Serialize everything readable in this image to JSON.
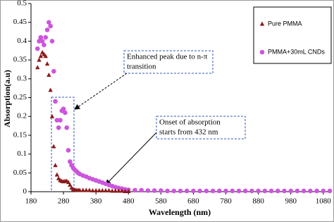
{
  "chart_data": {
    "type": "scatter",
    "xlabel": "Wavelength (nm)",
    "ylabel": "Absorption(a.u)",
    "x": [
      200,
      205,
      210,
      215,
      220,
      225,
      230,
      235,
      240,
      245,
      250,
      255,
      260,
      265,
      270,
      275,
      280,
      285,
      290,
      295,
      300,
      305,
      310,
      315,
      320,
      325,
      330,
      340,
      350,
      360,
      370,
      380,
      390,
      400,
      410,
      420,
      430,
      440,
      450,
      460,
      470,
      480,
      500,
      520,
      540,
      560,
      580,
      600,
      620,
      640,
      660,
      680,
      700,
      720,
      740,
      760,
      780,
      800,
      820,
      840,
      860,
      880,
      900,
      920,
      940,
      960,
      980,
      1000,
      1020,
      1040,
      1060,
      1080,
      1100
    ],
    "series": [
      {
        "name": "PMMA+30mL CNDs",
        "color": "#cc55dd",
        "marker": "circle",
        "values": [
          0.38,
          0.4,
          0.41,
          0.4,
          0.39,
          0.41,
          0.43,
          0.45,
          0.44,
          0.4,
          0.32,
          0.24,
          0.19,
          0.17,
          0.19,
          0.215,
          0.22,
          0.21,
          0.17,
          0.11,
          0.08,
          0.07,
          0.063,
          0.058,
          0.054,
          0.05,
          0.047,
          0.043,
          0.04,
          0.036,
          0.033,
          0.03,
          0.027,
          0.024,
          0.021,
          0.018,
          0.015,
          0.012,
          0.01,
          0.008,
          0.006,
          0.005,
          0.004,
          0.004,
          0.003,
          0.003,
          0.003,
          0.002,
          0.002,
          0.002,
          0.002,
          0.002,
          0.002,
          0.002,
          0.002,
          0.002,
          0.002,
          0.002,
          0.002,
          0.002,
          0.002,
          0.002,
          0.002,
          0.002,
          0.002,
          0.002,
          0.002,
          0.002,
          0.002,
          0.002,
          0.002,
          0.002,
          0.002
        ]
      },
      {
        "name": "Pure PMMA",
        "color": "#8b1a1a",
        "marker": "triangle",
        "values": [
          0.33,
          0.35,
          0.36,
          0.37,
          0.365,
          0.36,
          0.34,
          0.31,
          0.27,
          0.2,
          0.12,
          0.07,
          0.045,
          0.035,
          0.03,
          0.028,
          0.027,
          0.028,
          0.028,
          0.025,
          0.018,
          0.01,
          0.006,
          0.005,
          0.004,
          0.004,
          0.004,
          0.004,
          0.004,
          0.004,
          0.003,
          0.003,
          0.003,
          0.003,
          0.003,
          0.003,
          0.002,
          0.002,
          0.002,
          0.002,
          0.001,
          0.001,
          null,
          null,
          null,
          null,
          null,
          null,
          null,
          null,
          null,
          null,
          null,
          null,
          null,
          null,
          null,
          null,
          null,
          null,
          null,
          null,
          null,
          null,
          null,
          null,
          null,
          null,
          null,
          null,
          null,
          null,
          null
        ]
      }
    ],
    "xlim": [
      180,
      1100
    ],
    "xticks": [
      180,
      280,
      380,
      480,
      580,
      680,
      780,
      880,
      980,
      1080
    ],
    "ylim": [
      0,
      0.5
    ],
    "yticks": [
      0,
      0.05,
      0.1,
      0.15,
      0.2,
      0.25,
      0.3,
      0.35,
      0.4,
      0.45,
      0.5
    ],
    "legend": "upper right",
    "annotations": [
      {
        "lines": [
          "Enhanced peak due to n-π",
          "transition"
        ]
      },
      {
        "lines": [
          "Onset of absorption",
          "starts from 432 nm"
        ]
      }
    ]
  }
}
